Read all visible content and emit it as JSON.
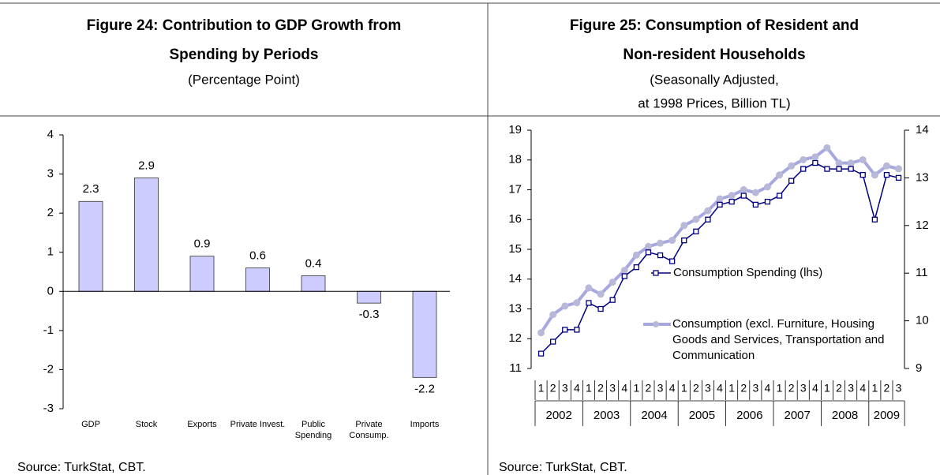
{
  "chart_data": [
    {
      "type": "bar",
      "title": [
        "Figure 24: Contribution to GDP Growth from",
        "Spending by Periods"
      ],
      "subtitle": [
        "(Percentage Point)"
      ],
      "categories": [
        "GDP",
        "Stock",
        "Exports",
        "Private Invest.",
        "Public Spending",
        "Private Consump.",
        "Imports"
      ],
      "values": [
        2.3,
        2.9,
        0.9,
        0.6,
        0.4,
        -0.3,
        -2.2
      ],
      "color": "#ccccff",
      "ylim": [
        -3,
        4
      ],
      "yticks": [
        -3,
        -2,
        -1,
        0,
        1,
        2,
        3,
        4
      ],
      "source": "Source: TurkStat, CBT."
    },
    {
      "type": "line",
      "title": [
        "Figure 25: Consumption of Resident and",
        "Non-resident Households"
      ],
      "subtitle": [
        "(Seasonally Adjusted,",
        "at 1998 Prices, Billion TL)"
      ],
      "quarters": [
        "1",
        "2",
        "3",
        "4",
        "1",
        "2",
        "3",
        "4",
        "1",
        "2",
        "3",
        "4",
        "1",
        "2",
        "3",
        "4",
        "1",
        "2",
        "3",
        "4",
        "1",
        "2",
        "3",
        "4",
        "1",
        "2",
        "3",
        "4",
        "1",
        "2",
        "3"
      ],
      "years": [
        "2002",
        "2003",
        "2004",
        "2005",
        "2006",
        "2007",
        "2008",
        "2009"
      ],
      "series": [
        {
          "name": "Consumption Spending (lhs)",
          "color": "#000080",
          "values": [
            11.5,
            11.9,
            12.3,
            12.3,
            13.2,
            13.0,
            13.3,
            14.1,
            14.4,
            14.9,
            14.8,
            14.6,
            15.3,
            15.6,
            16.0,
            16.5,
            16.6,
            16.8,
            16.5,
            16.6,
            16.8,
            17.3,
            17.7,
            17.9,
            17.7,
            17.7,
            17.7,
            17.5,
            16.0,
            17.5,
            17.4
          ]
        },
        {
          "name": "Consumption (excl. Furniture, Housing Goods and Services, Transportation and Communication",
          "color": "#a8a8e0",
          "axis": "y2",
          "values": [
            9.75,
            10.13,
            10.31,
            10.38,
            10.69,
            10.56,
            10.81,
            11.06,
            11.38,
            11.56,
            11.63,
            11.69,
            12.0,
            12.13,
            12.31,
            12.56,
            12.63,
            12.75,
            12.69,
            12.81,
            13.06,
            13.25,
            13.38,
            13.44,
            13.63,
            13.31,
            13.31,
            13.38,
            13.06,
            13.25,
            13.19
          ]
        }
      ],
      "ylim": [
        11,
        19
      ],
      "yticks": [
        11,
        12,
        13,
        14,
        15,
        16,
        17,
        18,
        19
      ],
      "y2lim": [
        9,
        14
      ],
      "y2ticks": [
        9,
        10,
        11,
        12,
        13,
        14
      ],
      "source": "Source: TurkStat, CBT."
    }
  ]
}
